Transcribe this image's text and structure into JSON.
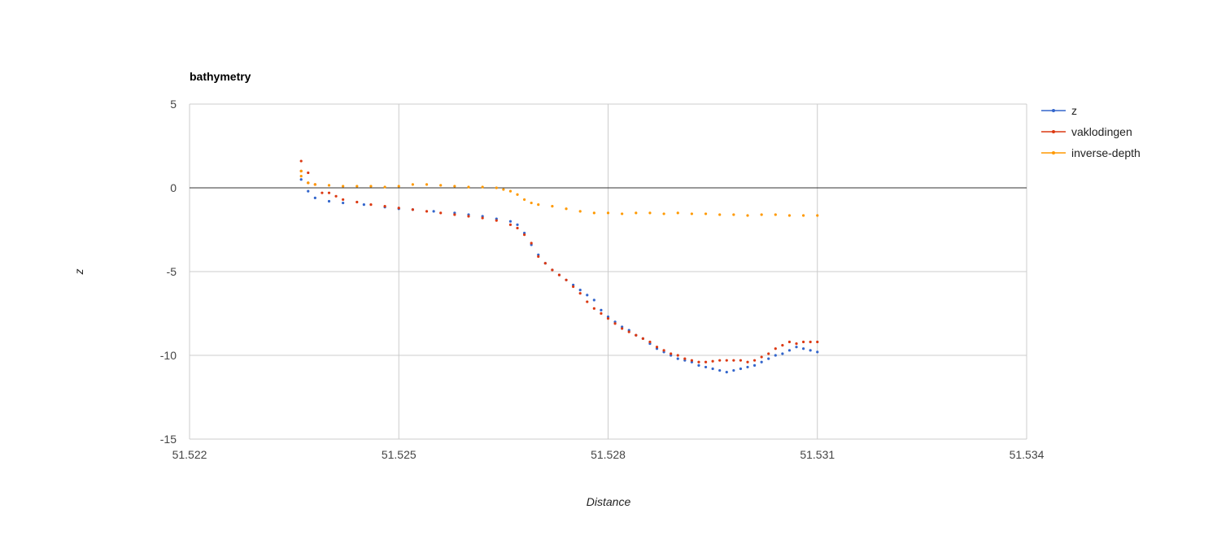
{
  "chart_data": {
    "type": "scatter",
    "title": "bathymetry",
    "xlabel": "Distance",
    "ylabel": "z",
    "xlim": [
      51.522,
      51.534
    ],
    "ylim": [
      -15,
      5
    ],
    "x_ticks": [
      "51.522",
      "51.525",
      "51.528",
      "51.531",
      "51.534"
    ],
    "y_ticks": [
      "5",
      "0",
      "-5",
      "-10",
      "-15"
    ],
    "grid": true,
    "legend": "right",
    "series": [
      {
        "name": "z",
        "color": "#3366cc",
        "points": [
          [
            51.5236,
            0.5
          ],
          [
            51.5237,
            -0.2
          ],
          [
            51.5238,
            -0.6
          ],
          [
            51.524,
            -0.8
          ],
          [
            51.5242,
            -0.9
          ],
          [
            51.5245,
            -1.0
          ],
          [
            51.5248,
            -1.15
          ],
          [
            51.525,
            -1.25
          ],
          [
            51.5252,
            -1.3
          ],
          [
            51.5255,
            -1.4
          ],
          [
            51.5258,
            -1.5
          ],
          [
            51.526,
            -1.6
          ],
          [
            51.5262,
            -1.7
          ],
          [
            51.5264,
            -1.85
          ],
          [
            51.5266,
            -2.0
          ],
          [
            51.5267,
            -2.2
          ],
          [
            51.5268,
            -2.7
          ],
          [
            51.5269,
            -3.4
          ],
          [
            51.527,
            -4.0
          ],
          [
            51.5271,
            -4.5
          ],
          [
            51.5272,
            -4.9
          ],
          [
            51.5273,
            -5.2
          ],
          [
            51.5274,
            -5.5
          ],
          [
            51.5275,
            -5.8
          ],
          [
            51.5276,
            -6.1
          ],
          [
            51.5277,
            -6.4
          ],
          [
            51.5278,
            -6.7
          ],
          [
            51.5279,
            -7.3
          ],
          [
            51.528,
            -7.7
          ],
          [
            51.5281,
            -8.0
          ],
          [
            51.5282,
            -8.3
          ],
          [
            51.5283,
            -8.5
          ],
          [
            51.5284,
            -8.8
          ],
          [
            51.5285,
            -9.0
          ],
          [
            51.5286,
            -9.3
          ],
          [
            51.5287,
            -9.6
          ],
          [
            51.5288,
            -9.8
          ],
          [
            51.5289,
            -10.0
          ],
          [
            51.529,
            -10.2
          ],
          [
            51.5291,
            -10.3
          ],
          [
            51.5292,
            -10.4
          ],
          [
            51.5293,
            -10.6
          ],
          [
            51.5294,
            -10.7
          ],
          [
            51.5295,
            -10.8
          ],
          [
            51.5296,
            -10.9
          ],
          [
            51.5297,
            -11.0
          ],
          [
            51.5298,
            -10.9
          ],
          [
            51.5299,
            -10.8
          ],
          [
            51.53,
            -10.7
          ],
          [
            51.5301,
            -10.6
          ],
          [
            51.5302,
            -10.4
          ],
          [
            51.5303,
            -10.2
          ],
          [
            51.5304,
            -10.0
          ],
          [
            51.5305,
            -9.9
          ],
          [
            51.5306,
            -9.7
          ],
          [
            51.5307,
            -9.5
          ],
          [
            51.5308,
            -9.6
          ],
          [
            51.5309,
            -9.7
          ],
          [
            51.531,
            -9.8
          ]
        ]
      },
      {
        "name": "vaklodingen",
        "color": "#dc3912",
        "points": [
          [
            51.5236,
            1.6
          ],
          [
            51.5236,
            1.0
          ],
          [
            51.5237,
            0.9
          ],
          [
            51.5237,
            0.3
          ],
          [
            51.5238,
            0.2
          ],
          [
            51.5239,
            -0.3
          ],
          [
            51.524,
            -0.3
          ],
          [
            51.5241,
            -0.5
          ],
          [
            51.5242,
            -0.7
          ],
          [
            51.5244,
            -0.85
          ],
          [
            51.5246,
            -1.0
          ],
          [
            51.5248,
            -1.1
          ],
          [
            51.525,
            -1.2
          ],
          [
            51.5252,
            -1.3
          ],
          [
            51.5254,
            -1.4
          ],
          [
            51.5256,
            -1.5
          ],
          [
            51.5258,
            -1.6
          ],
          [
            51.526,
            -1.7
          ],
          [
            51.5262,
            -1.8
          ],
          [
            51.5264,
            -1.95
          ],
          [
            51.5266,
            -2.2
          ],
          [
            51.5267,
            -2.4
          ],
          [
            51.5268,
            -2.8
          ],
          [
            51.5269,
            -3.3
          ],
          [
            51.527,
            -4.1
          ],
          [
            51.5271,
            -4.5
          ],
          [
            51.5272,
            -4.9
          ],
          [
            51.5273,
            -5.2
          ],
          [
            51.5274,
            -5.5
          ],
          [
            51.5275,
            -5.9
          ],
          [
            51.5276,
            -6.3
          ],
          [
            51.5277,
            -6.8
          ],
          [
            51.5278,
            -7.2
          ],
          [
            51.5279,
            -7.5
          ],
          [
            51.528,
            -7.8
          ],
          [
            51.5281,
            -8.1
          ],
          [
            51.5282,
            -8.4
          ],
          [
            51.5283,
            -8.6
          ],
          [
            51.5284,
            -8.8
          ],
          [
            51.5285,
            -9.0
          ],
          [
            51.5286,
            -9.2
          ],
          [
            51.5287,
            -9.5
          ],
          [
            51.5288,
            -9.7
          ],
          [
            51.5289,
            -9.9
          ],
          [
            51.529,
            -10.0
          ],
          [
            51.5291,
            -10.2
          ],
          [
            51.5292,
            -10.3
          ],
          [
            51.5293,
            -10.4
          ],
          [
            51.5294,
            -10.4
          ],
          [
            51.5295,
            -10.35
          ],
          [
            51.5296,
            -10.3
          ],
          [
            51.5297,
            -10.3
          ],
          [
            51.5298,
            -10.3
          ],
          [
            51.5299,
            -10.3
          ],
          [
            51.53,
            -10.4
          ],
          [
            51.5301,
            -10.3
          ],
          [
            51.5302,
            -10.1
          ],
          [
            51.5303,
            -9.9
          ],
          [
            51.5304,
            -9.6
          ],
          [
            51.5305,
            -9.4
          ],
          [
            51.5306,
            -9.2
          ],
          [
            51.5307,
            -9.3
          ],
          [
            51.5308,
            -9.2
          ],
          [
            51.5309,
            -9.2
          ],
          [
            51.531,
            -9.2
          ]
        ]
      },
      {
        "name": "inverse-depth",
        "color": "#ff9900",
        "points": [
          [
            51.5236,
            1.0
          ],
          [
            51.5236,
            0.7
          ],
          [
            51.5237,
            0.3
          ],
          [
            51.5238,
            0.2
          ],
          [
            51.524,
            0.15
          ],
          [
            51.5242,
            0.1
          ],
          [
            51.5244,
            0.1
          ],
          [
            51.5246,
            0.1
          ],
          [
            51.5248,
            0.05
          ],
          [
            51.525,
            0.1
          ],
          [
            51.5252,
            0.2
          ],
          [
            51.5254,
            0.2
          ],
          [
            51.5256,
            0.15
          ],
          [
            51.5258,
            0.1
          ],
          [
            51.526,
            0.05
          ],
          [
            51.5262,
            0.05
          ],
          [
            51.5264,
            0.0
          ],
          [
            51.5265,
            -0.1
          ],
          [
            51.5266,
            -0.2
          ],
          [
            51.5267,
            -0.4
          ],
          [
            51.5268,
            -0.7
          ],
          [
            51.5269,
            -0.9
          ],
          [
            51.527,
            -1.0
          ],
          [
            51.5272,
            -1.1
          ],
          [
            51.5274,
            -1.25
          ],
          [
            51.5276,
            -1.4
          ],
          [
            51.5278,
            -1.5
          ],
          [
            51.528,
            -1.5
          ],
          [
            51.5282,
            -1.55
          ],
          [
            51.5284,
            -1.5
          ],
          [
            51.5286,
            -1.5
          ],
          [
            51.5288,
            -1.55
          ],
          [
            51.529,
            -1.5
          ],
          [
            51.5292,
            -1.55
          ],
          [
            51.5294,
            -1.55
          ],
          [
            51.5296,
            -1.6
          ],
          [
            51.5298,
            -1.6
          ],
          [
            51.53,
            -1.65
          ],
          [
            51.5302,
            -1.6
          ],
          [
            51.5304,
            -1.6
          ],
          [
            51.5306,
            -1.65
          ],
          [
            51.5308,
            -1.65
          ],
          [
            51.531,
            -1.65
          ]
        ]
      }
    ]
  }
}
